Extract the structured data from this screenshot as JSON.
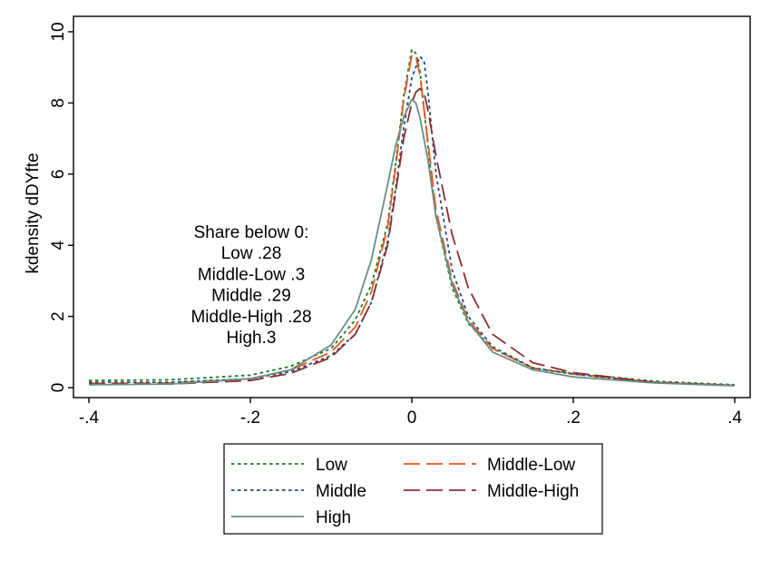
{
  "chart_data": {
    "type": "line",
    "title": "",
    "xlabel": "",
    "ylabel": "kdensity dDYfte",
    "xlim": [
      -0.4,
      0.4
    ],
    "ylim": [
      0,
      10
    ],
    "x_ticks": [
      -0.4,
      -0.2,
      0,
      0.2,
      0.4
    ],
    "x_tick_labels": [
      "-.4",
      "-.2",
      "0",
      ".2",
      ".4"
    ],
    "y_ticks": [
      0,
      2,
      4,
      6,
      8,
      10
    ],
    "y_tick_labels": [
      "0",
      "2",
      "4",
      "6",
      "8",
      "10"
    ],
    "grid": false,
    "legend_position": "bottom",
    "annotation_lines": [
      "Share below 0:",
      "Low .28",
      "Middle-Low .3",
      "Middle .29",
      "Middle-High .28",
      "High.3"
    ],
    "series": [
      {
        "name": "Low",
        "color": "#1a7a2a",
        "style": "dot",
        "x": [
          -0.4,
          -0.3,
          -0.2,
          -0.15,
          -0.1,
          -0.07,
          -0.05,
          -0.03,
          -0.02,
          -0.01,
          0.0,
          0.005,
          0.01,
          0.02,
          0.03,
          0.05,
          0.07,
          0.1,
          0.15,
          0.2,
          0.3,
          0.4
        ],
        "y": [
          0.2,
          0.22,
          0.35,
          0.6,
          1.1,
          1.9,
          2.9,
          4.6,
          6.3,
          8.2,
          9.5,
          9.4,
          8.9,
          6.8,
          4.8,
          2.8,
          1.8,
          1.1,
          0.55,
          0.4,
          0.18,
          0.08
        ]
      },
      {
        "name": "Middle-Low",
        "color": "#e8561c",
        "style": "longdash",
        "x": [
          -0.4,
          -0.3,
          -0.2,
          -0.15,
          -0.1,
          -0.07,
          -0.05,
          -0.03,
          -0.02,
          -0.01,
          0.0,
          0.005,
          0.01,
          0.02,
          0.03,
          0.05,
          0.07,
          0.1,
          0.15,
          0.2,
          0.3,
          0.4
        ],
        "y": [
          0.12,
          0.13,
          0.25,
          0.5,
          1.0,
          1.7,
          2.7,
          4.5,
          6.2,
          8.1,
          9.35,
          9.3,
          8.8,
          6.9,
          5.0,
          3.0,
          1.9,
          1.1,
          0.55,
          0.38,
          0.15,
          0.06
        ]
      },
      {
        "name": "Middle",
        "color": "#1f4e79",
        "style": "dot",
        "x": [
          -0.4,
          -0.3,
          -0.2,
          -0.15,
          -0.1,
          -0.07,
          -0.05,
          -0.03,
          -0.02,
          -0.01,
          0.0,
          0.005,
          0.01,
          0.015,
          0.02,
          0.03,
          0.05,
          0.07,
          0.1,
          0.15,
          0.2,
          0.3,
          0.4
        ],
        "y": [
          0.15,
          0.15,
          0.25,
          0.45,
          0.9,
          1.5,
          2.4,
          4.1,
          5.6,
          7.3,
          8.7,
          9.0,
          9.3,
          9.2,
          8.3,
          6.0,
          3.3,
          2.0,
          1.15,
          0.55,
          0.38,
          0.14,
          0.06
        ]
      },
      {
        "name": "Middle-High",
        "color": "#8b2e2e",
        "style": "longdash",
        "x": [
          -0.4,
          -0.3,
          -0.2,
          -0.15,
          -0.1,
          -0.07,
          -0.05,
          -0.03,
          -0.02,
          -0.01,
          0.0,
          0.005,
          0.01,
          0.015,
          0.02,
          0.03,
          0.05,
          0.07,
          0.1,
          0.15,
          0.2,
          0.3,
          0.4
        ],
        "y": [
          0.1,
          0.1,
          0.2,
          0.4,
          0.85,
          1.5,
          2.4,
          4.0,
          5.5,
          7.0,
          8.0,
          8.3,
          8.4,
          8.3,
          7.8,
          6.5,
          4.3,
          2.8,
          1.5,
          0.7,
          0.42,
          0.15,
          0.06
        ]
      },
      {
        "name": "High",
        "color": "#6a8e88",
        "style": "solid",
        "x": [
          -0.4,
          -0.3,
          -0.2,
          -0.15,
          -0.1,
          -0.07,
          -0.05,
          -0.03,
          -0.02,
          -0.01,
          0.0,
          0.005,
          0.01,
          0.02,
          0.03,
          0.05,
          0.07,
          0.1,
          0.15,
          0.2,
          0.3,
          0.4
        ],
        "y": [
          0.08,
          0.1,
          0.25,
          0.5,
          1.2,
          2.2,
          3.6,
          5.7,
          6.8,
          7.6,
          8.1,
          8.0,
          7.6,
          6.4,
          4.8,
          2.9,
          1.85,
          1.0,
          0.5,
          0.3,
          0.13,
          0.05
        ]
      }
    ]
  }
}
